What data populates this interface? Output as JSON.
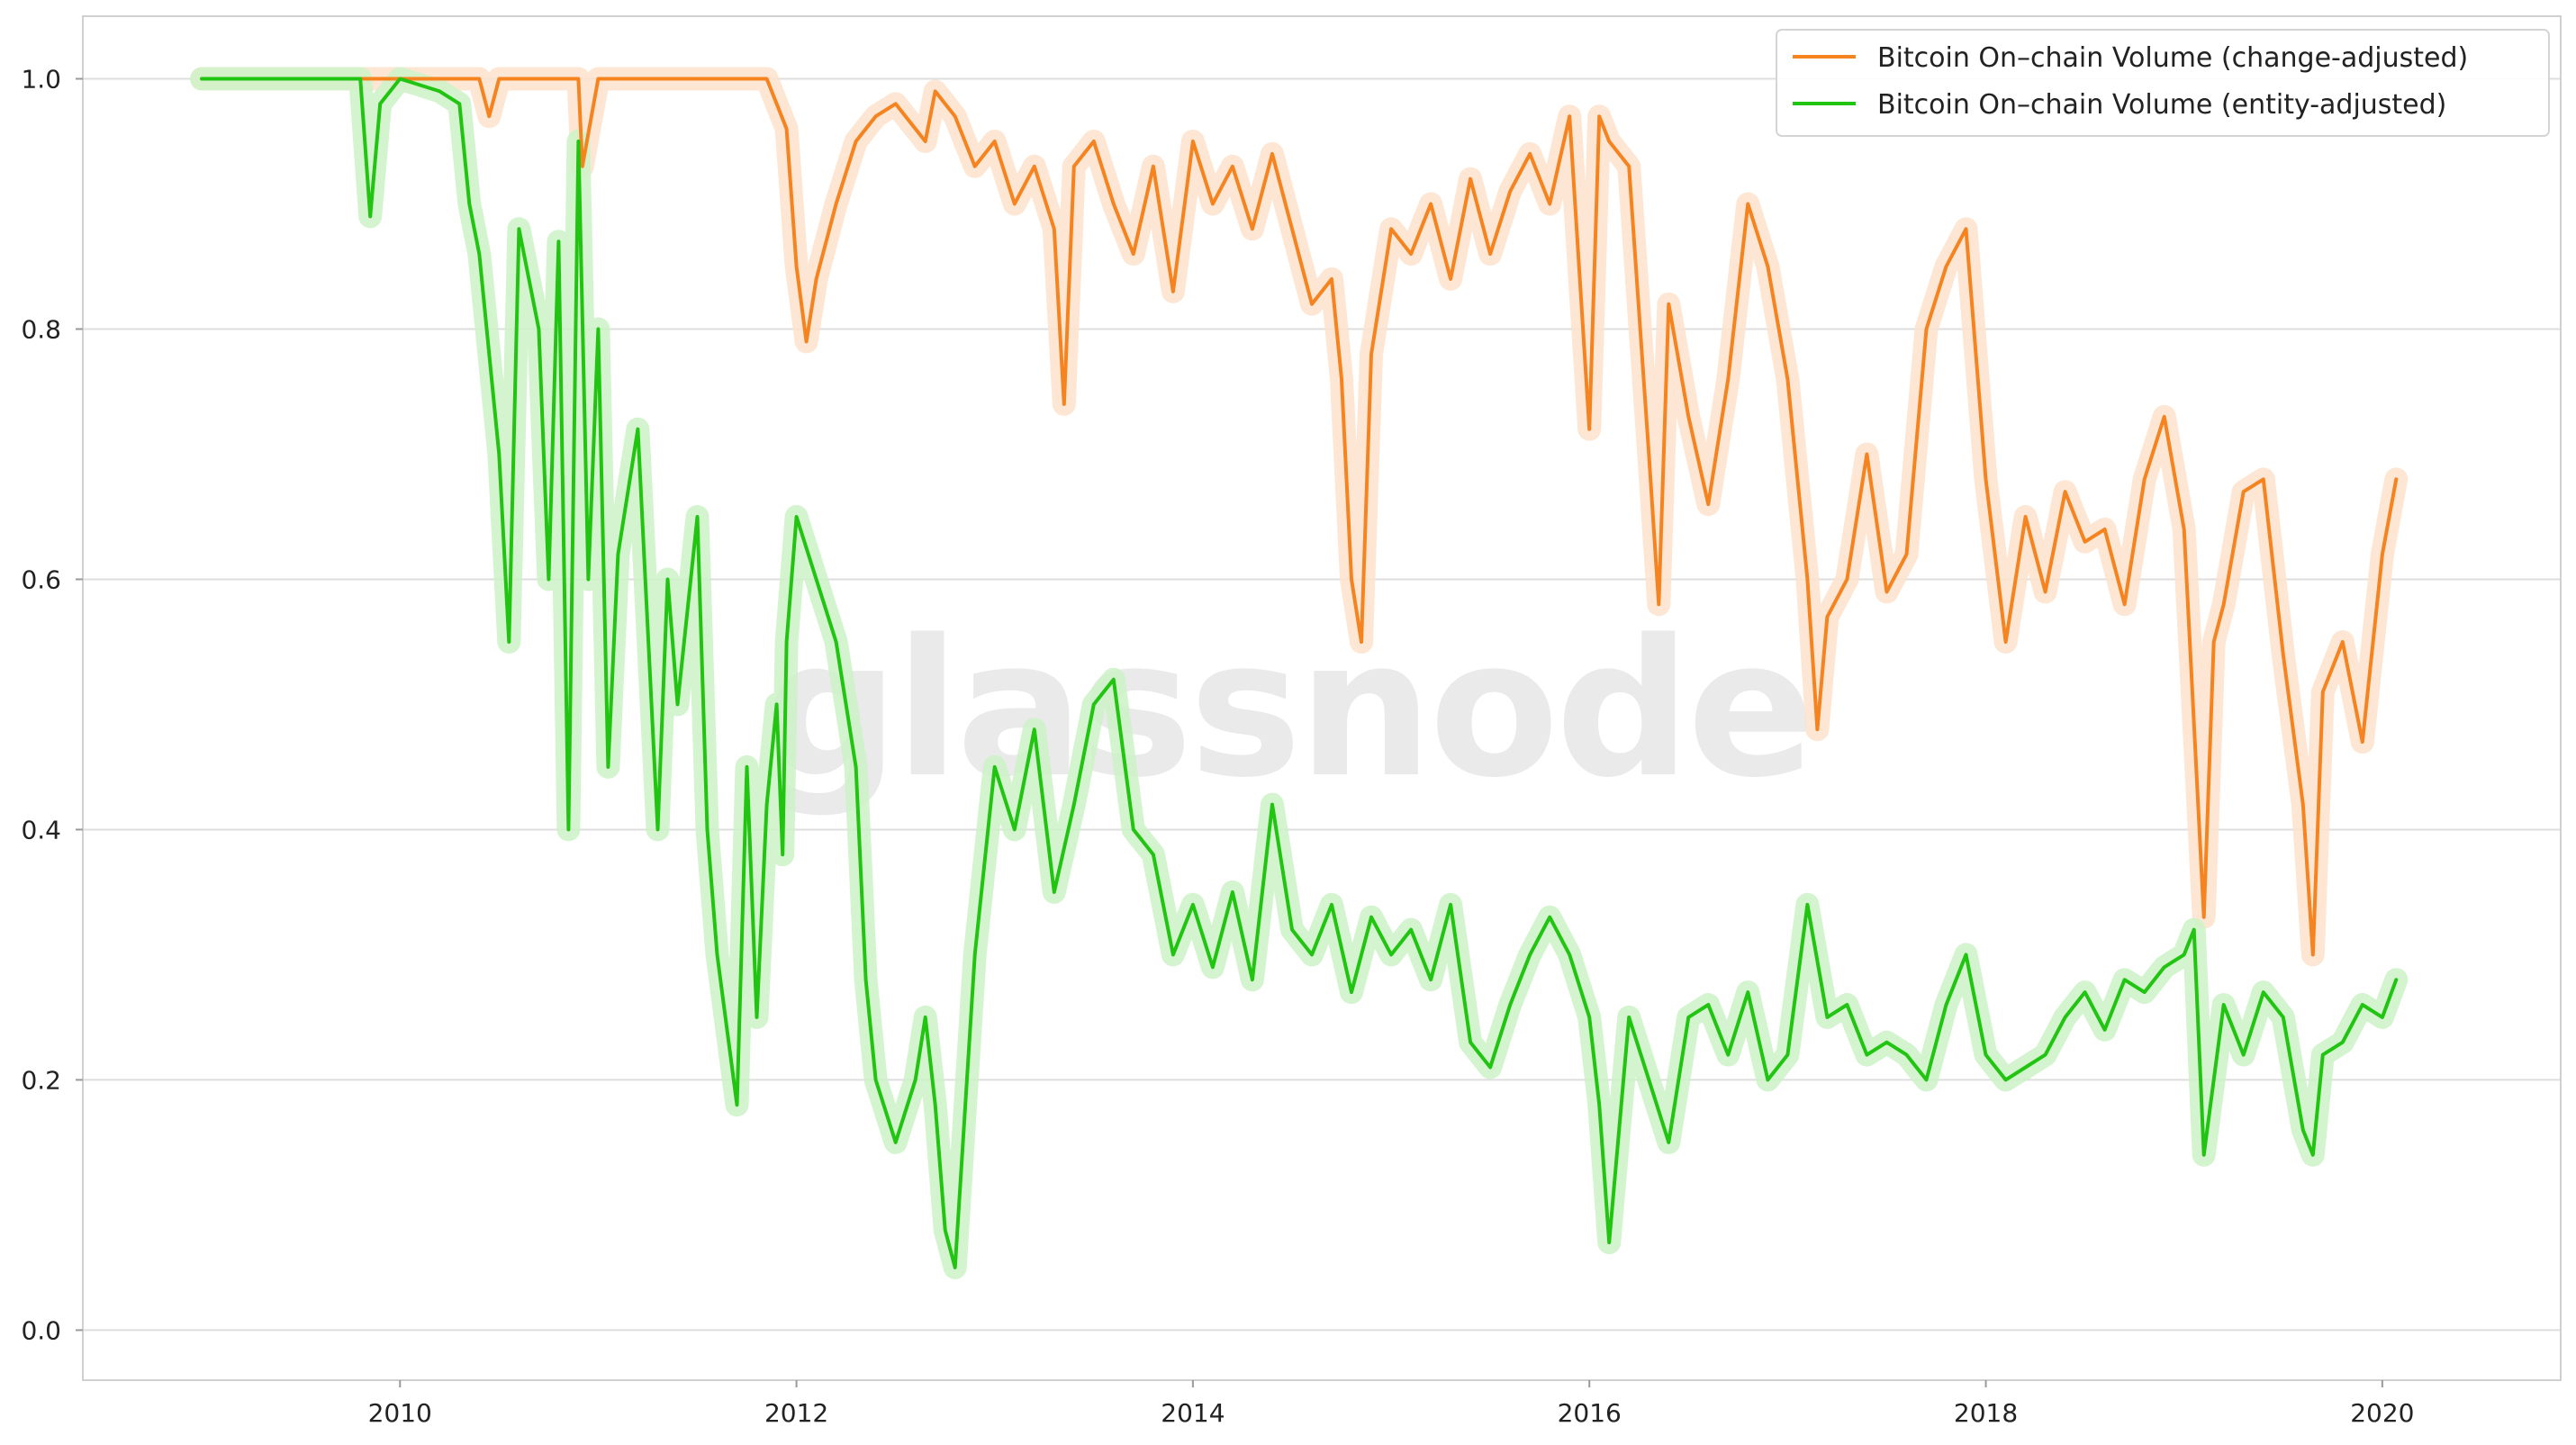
{
  "watermark": "glassnode",
  "chart_data": {
    "type": "line",
    "title": "",
    "xlabel": "",
    "ylabel": "",
    "xlim": [
      2008.4,
      2020.9
    ],
    "ylim": [
      -0.04,
      1.05
    ],
    "grid": true,
    "legend_position": "top-right",
    "x_ticks": [
      2010,
      2012,
      2014,
      2016,
      2018,
      2020
    ],
    "x_tick_labels": [
      "2010",
      "2012",
      "2014",
      "2016",
      "2018",
      "2020"
    ],
    "y_ticks": [
      0.0,
      0.2,
      0.4,
      0.6,
      0.8,
      1.0
    ],
    "y_tick_labels": [
      "0.0",
      "0.2",
      "0.4",
      "0.6",
      "0.8",
      "1.0"
    ],
    "series": [
      {
        "name": "Bitcoin On–chain Volume (change-adjusted)",
        "color": "#f5831f",
        "band_color": "#fde3cc",
        "x": [
          2009.0,
          2009.5,
          2010.0,
          2010.4,
          2010.45,
          2010.5,
          2010.9,
          2010.92,
          2011.0,
          2011.5,
          2011.85,
          2011.95,
          2012.0,
          2012.05,
          2012.1,
          2012.2,
          2012.3,
          2012.4,
          2012.5,
          2012.6,
          2012.65,
          2012.7,
          2012.8,
          2012.9,
          2013.0,
          2013.1,
          2013.2,
          2013.3,
          2013.35,
          2013.4,
          2013.5,
          2013.6,
          2013.7,
          2013.8,
          2013.9,
          2014.0,
          2014.1,
          2014.2,
          2014.3,
          2014.4,
          2014.5,
          2014.6,
          2014.7,
          2014.75,
          2014.8,
          2014.85,
          2014.9,
          2015.0,
          2015.1,
          2015.2,
          2015.3,
          2015.4,
          2015.5,
          2015.6,
          2015.7,
          2015.8,
          2015.9,
          2016.0,
          2016.05,
          2016.1,
          2016.2,
          2016.3,
          2016.35,
          2016.4,
          2016.5,
          2016.6,
          2016.7,
          2016.8,
          2016.9,
          2017.0,
          2017.1,
          2017.15,
          2017.2,
          2017.3,
          2017.4,
          2017.5,
          2017.6,
          2017.7,
          2017.8,
          2017.9,
          2018.0,
          2018.1,
          2018.2,
          2018.3,
          2018.4,
          2018.5,
          2018.6,
          2018.7,
          2018.8,
          2018.9,
          2019.0,
          2019.1,
          2019.15,
          2019.2,
          2019.3,
          2019.4,
          2019.5,
          2019.6,
          2019.65,
          2019.7,
          2019.8,
          2019.9,
          2020.0,
          2020.07
        ],
        "values": [
          1.0,
          1.0,
          1.0,
          1.0,
          0.97,
          1.0,
          1.0,
          0.93,
          1.0,
          1.0,
          1.0,
          0.96,
          0.85,
          0.79,
          0.84,
          0.9,
          0.95,
          0.97,
          0.98,
          0.96,
          0.95,
          0.99,
          0.97,
          0.93,
          0.95,
          0.9,
          0.93,
          0.88,
          0.74,
          0.93,
          0.95,
          0.9,
          0.86,
          0.93,
          0.83,
          0.95,
          0.9,
          0.93,
          0.88,
          0.94,
          0.88,
          0.82,
          0.84,
          0.76,
          0.6,
          0.55,
          0.78,
          0.88,
          0.86,
          0.9,
          0.84,
          0.92,
          0.86,
          0.91,
          0.94,
          0.9,
          0.97,
          0.72,
          0.97,
          0.95,
          0.93,
          0.7,
          0.58,
          0.82,
          0.73,
          0.66,
          0.76,
          0.9,
          0.85,
          0.76,
          0.6,
          0.48,
          0.57,
          0.6,
          0.7,
          0.59,
          0.62,
          0.8,
          0.85,
          0.88,
          0.68,
          0.55,
          0.65,
          0.59,
          0.67,
          0.63,
          0.64,
          0.58,
          0.68,
          0.73,
          0.64,
          0.33,
          0.55,
          0.58,
          0.67,
          0.68,
          0.54,
          0.42,
          0.3,
          0.51,
          0.55,
          0.47,
          0.62,
          0.68
        ]
      },
      {
        "name": "Bitcoin On–chain Volume (entity-adjusted)",
        "color": "#22c412",
        "band_color": "#cdf2c8",
        "x": [
          2009.0,
          2009.3,
          2009.6,
          2009.8,
          2009.85,
          2009.9,
          2010.0,
          2010.2,
          2010.3,
          2010.35,
          2010.4,
          2010.5,
          2010.55,
          2010.6,
          2010.7,
          2010.75,
          2010.8,
          2010.85,
          2010.9,
          2010.95,
          2011.0,
          2011.05,
          2011.1,
          2011.2,
          2011.3,
          2011.35,
          2011.4,
          2011.5,
          2011.55,
          2011.6,
          2011.7,
          2011.75,
          2011.8,
          2011.85,
          2011.9,
          2011.93,
          2011.95,
          2012.0,
          2012.1,
          2012.2,
          2012.3,
          2012.35,
          2012.4,
          2012.5,
          2012.6,
          2012.65,
          2012.7,
          2012.75,
          2012.8,
          2012.9,
          2013.0,
          2013.1,
          2013.2,
          2013.3,
          2013.4,
          2013.5,
          2013.6,
          2013.7,
          2013.8,
          2013.9,
          2014.0,
          2014.1,
          2014.2,
          2014.3,
          2014.4,
          2014.5,
          2014.6,
          2014.7,
          2014.8,
          2014.9,
          2015.0,
          2015.1,
          2015.2,
          2015.3,
          2015.4,
          2015.5,
          2015.6,
          2015.7,
          2015.8,
          2015.9,
          2016.0,
          2016.05,
          2016.1,
          2016.2,
          2016.3,
          2016.4,
          2016.5,
          2016.6,
          2016.7,
          2016.8,
          2016.9,
          2017.0,
          2017.1,
          2017.2,
          2017.3,
          2017.4,
          2017.5,
          2017.6,
          2017.7,
          2017.8,
          2017.9,
          2018.0,
          2018.1,
          2018.2,
          2018.3,
          2018.4,
          2018.5,
          2018.6,
          2018.7,
          2018.8,
          2018.9,
          2019.0,
          2019.05,
          2019.1,
          2019.2,
          2019.3,
          2019.4,
          2019.5,
          2019.6,
          2019.65,
          2019.7,
          2019.8,
          2019.9,
          2020.0,
          2020.07
        ],
        "values": [
          1.0,
          1.0,
          1.0,
          1.0,
          0.89,
          0.98,
          1.0,
          0.99,
          0.98,
          0.9,
          0.86,
          0.7,
          0.55,
          0.88,
          0.8,
          0.6,
          0.87,
          0.4,
          0.95,
          0.6,
          0.8,
          0.45,
          0.62,
          0.72,
          0.4,
          0.6,
          0.5,
          0.65,
          0.4,
          0.3,
          0.18,
          0.45,
          0.25,
          0.42,
          0.5,
          0.38,
          0.55,
          0.65,
          0.6,
          0.55,
          0.45,
          0.28,
          0.2,
          0.15,
          0.2,
          0.25,
          0.18,
          0.08,
          0.05,
          0.3,
          0.45,
          0.4,
          0.48,
          0.35,
          0.42,
          0.5,
          0.52,
          0.4,
          0.38,
          0.3,
          0.34,
          0.29,
          0.35,
          0.28,
          0.42,
          0.32,
          0.3,
          0.34,
          0.27,
          0.33,
          0.3,
          0.32,
          0.28,
          0.34,
          0.23,
          0.21,
          0.26,
          0.3,
          0.33,
          0.3,
          0.25,
          0.18,
          0.07,
          0.25,
          0.2,
          0.15,
          0.25,
          0.26,
          0.22,
          0.27,
          0.2,
          0.22,
          0.34,
          0.25,
          0.26,
          0.22,
          0.23,
          0.22,
          0.2,
          0.26,
          0.3,
          0.22,
          0.2,
          0.21,
          0.22,
          0.25,
          0.27,
          0.24,
          0.28,
          0.27,
          0.29,
          0.3,
          0.32,
          0.14,
          0.26,
          0.22,
          0.27,
          0.25,
          0.16,
          0.14,
          0.22,
          0.23,
          0.26,
          0.25,
          0.28
        ]
      }
    ]
  }
}
